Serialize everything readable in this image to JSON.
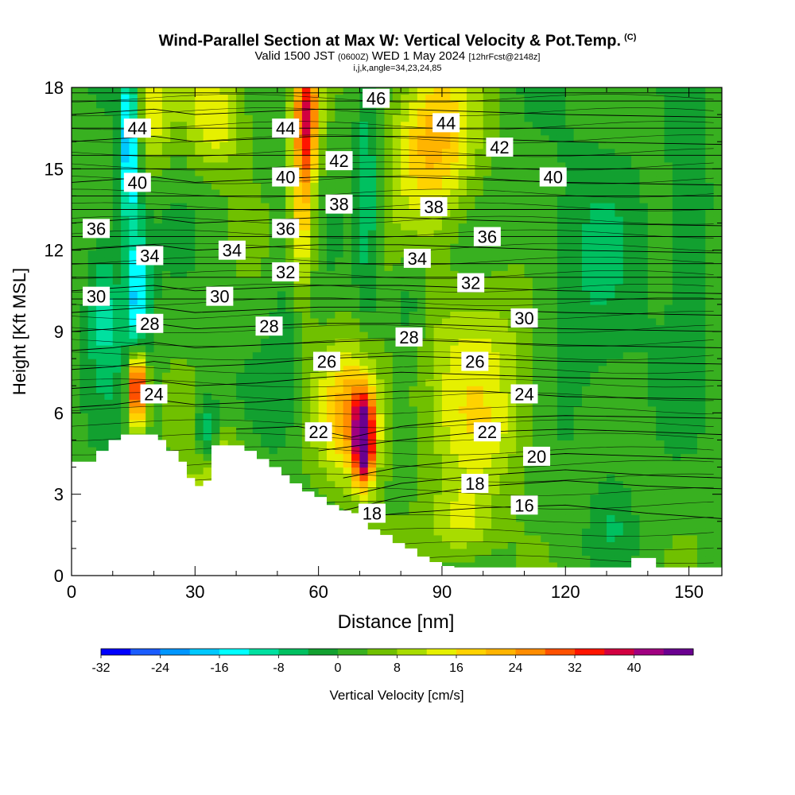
{
  "title": {
    "main": "Wind-Parallel Section at Max W: Vertical Velocity & Pot.Temp.",
    "copyright": "(C)",
    "valid_prefix": "Valid 1500 JST",
    "valid_utc": "(0600Z)",
    "valid_date": "WED 1 May 2024",
    "forecast": "[12hrFcst@2148z]",
    "indices": "i,j,k,angle=34,23,24,85"
  },
  "chart_data": {
    "type": "heatmap",
    "xlabel": "Distance [nm]",
    "ylabel": "Height [Kft MSL]",
    "xlim": [
      0,
      158
    ],
    "ylim": [
      0,
      18
    ],
    "x_ticks": [
      0,
      30,
      60,
      90,
      120,
      150
    ],
    "y_ticks": [
      0,
      3,
      6,
      9,
      12,
      15,
      18
    ],
    "grid": false,
    "colorbar": {
      "label": "Vertical Velocity [cm/s]",
      "tick_labels": [
        -32,
        -24,
        -16,
        -8,
        0,
        8,
        16,
        24,
        32,
        40
      ],
      "levels": [
        -32,
        -28,
        -24,
        -20,
        -16,
        -12,
        -8,
        -4,
        0,
        4,
        8,
        12,
        16,
        20,
        24,
        28,
        32,
        36,
        40,
        44
      ],
      "colors": [
        "#0000ff",
        "#1a5cff",
        "#0096ff",
        "#00c8ff",
        "#00ffff",
        "#00e0a0",
        "#00c060",
        "#12a030",
        "#38b020",
        "#70c000",
        "#a8dc00",
        "#e6f000",
        "#ffd200",
        "#ffb400",
        "#ff8c00",
        "#ff5000",
        "#ff1400",
        "#d20040",
        "#a00080",
        "#6a0090"
      ]
    },
    "terrain_profile": {
      "x": [
        0,
        3,
        6,
        9,
        12,
        15,
        17,
        21,
        23,
        26,
        28,
        30,
        32,
        34,
        37,
        40,
        42,
        45,
        48,
        51,
        53,
        56,
        59,
        62,
        65,
        68,
        70,
        72,
        75,
        78,
        81,
        84,
        87,
        90,
        93,
        100,
        110,
        120,
        125,
        130,
        133,
        136,
        139,
        142,
        145,
        150,
        158
      ],
      "heights": [
        4.2,
        4.2,
        4.6,
        5.0,
        5.2,
        5.2,
        5.2,
        5.0,
        4.6,
        4.2,
        3.6,
        3.3,
        3.5,
        4.8,
        4.8,
        4.8,
        4.6,
        4.3,
        4.0,
        3.7,
        3.4,
        3.1,
        2.9,
        2.6,
        2.4,
        2.3,
        2.0,
        1.7,
        1.5,
        1.2,
        1.0,
        0.7,
        0.5,
        0.35,
        0.3,
        0.3,
        0.3,
        0.3,
        0.3,
        0.3,
        0.3,
        0.65,
        0.65,
        0.3,
        0.3,
        0.3,
        0.3
      ]
    },
    "series": [
      {
        "name": "16",
        "label_x": 110,
        "label_y": 2.6,
        "x": [
          60,
          80,
          100,
          120,
          140,
          158
        ],
        "y": [
          2.0,
          2.3,
          2.5,
          2.6,
          2.3,
          2.1
        ]
      },
      {
        "name": "18",
        "label_x": 73,
        "label_y": 2.3,
        "x": [
          66,
          80,
          100,
          120,
          140,
          158
        ],
        "y": [
          2.4,
          2.9,
          3.3,
          3.5,
          3.3,
          3.2
        ]
      },
      {
        "name": "18",
        "label_x": 98,
        "label_y": 3.4,
        "x": [
          66,
          80,
          100,
          120,
          140,
          158
        ],
        "y": [
          2.9,
          3.4,
          3.7,
          3.9,
          3.7,
          3.6
        ]
      },
      {
        "name": "20",
        "label_x": 113,
        "label_y": 4.4,
        "x": [
          66,
          80,
          100,
          120,
          140,
          158
        ],
        "y": [
          3.6,
          4.0,
          4.3,
          4.5,
          4.4,
          4.3
        ]
      },
      {
        "name": "22",
        "label_x": 101,
        "label_y": 5.3,
        "x": [
          60,
          80,
          100,
          120,
          140,
          158
        ],
        "y": [
          4.6,
          5.0,
          5.3,
          5.4,
          5.3,
          5.2
        ]
      },
      {
        "name": "22",
        "label_x": 60,
        "label_y": 5.3,
        "x": [
          40,
          55,
          68,
          80,
          100,
          120,
          158
        ],
        "y": [
          5.4,
          5.5,
          5.1,
          5.5,
          5.8,
          5.9,
          5.8
        ]
      },
      {
        "name": "24",
        "label_x": 20,
        "label_y": 6.7,
        "x": [
          0,
          10,
          20,
          30,
          45,
          60,
          80,
          100,
          120,
          158
        ],
        "y": [
          6.2,
          6.3,
          6.5,
          6.3,
          6.4,
          6.6,
          6.8,
          6.8,
          6.6,
          6.5
        ]
      },
      {
        "name": "24",
        "label_x": 110,
        "label_y": 6.7,
        "x": [
          0,
          10,
          20,
          30,
          45,
          60,
          80,
          100,
          120,
          158
        ],
        "y": [
          6.9,
          7.0,
          7.2,
          7.0,
          7.1,
          7.3,
          7.5,
          7.4,
          7.3,
          7.2
        ]
      },
      {
        "name": "26",
        "label_x": 62,
        "label_y": 7.9,
        "x": [
          0,
          10,
          20,
          30,
          45,
          60,
          80,
          100,
          120,
          158
        ],
        "y": [
          7.6,
          7.7,
          7.9,
          7.7,
          7.8,
          8.0,
          8.1,
          8.0,
          7.9,
          7.8
        ]
      },
      {
        "name": "26",
        "label_x": 98,
        "label_y": 7.9,
        "x": [
          0,
          10,
          20,
          30,
          45,
          60,
          80,
          100,
          120,
          158
        ],
        "y": [
          8.3,
          8.4,
          8.6,
          8.4,
          8.5,
          8.6,
          8.7,
          8.6,
          8.5,
          8.4
        ]
      },
      {
        "name": "28",
        "label_x": 19,
        "label_y": 9.3,
        "x": [
          0,
          10,
          20,
          30,
          45,
          60,
          80,
          100,
          120,
          158
        ],
        "y": [
          9.0,
          9.1,
          9.3,
          9.1,
          9.2,
          9.3,
          9.3,
          9.2,
          9.1,
          9.0
        ]
      },
      {
        "name": "28",
        "label_x": 48,
        "label_y": 9.2,
        "x": [
          0,
          10,
          20,
          30,
          45,
          60,
          80,
          100,
          120,
          158
        ],
        "y": [
          9.7,
          9.8,
          9.9,
          9.7,
          9.8,
          9.9,
          9.9,
          9.8,
          9.7,
          9.6
        ]
      },
      {
        "name": "28",
        "label_x": 82,
        "label_y": 8.8,
        "x": [
          0,
          158
        ],
        "y": [
          10.2,
          10.2
        ]
      },
      {
        "name": "30",
        "label_x": 6,
        "label_y": 10.3,
        "x": [
          0,
          10,
          20,
          30,
          45,
          60,
          80,
          100,
          120,
          158
        ],
        "y": [
          10.5,
          10.6,
          10.7,
          10.5,
          10.6,
          10.7,
          10.7,
          10.6,
          10.5,
          10.4
        ]
      },
      {
        "name": "30",
        "label_x": 36,
        "label_y": 10.3,
        "x": [
          0,
          158
        ],
        "y": [
          11.0,
          11.0
        ]
      },
      {
        "name": "30",
        "label_x": 110,
        "label_y": 9.5,
        "x": [
          0,
          158
        ],
        "y": [
          11.5,
          11.5
        ]
      },
      {
        "name": "32",
        "label_x": 52,
        "label_y": 11.2,
        "x": [
          0,
          10,
          20,
          30,
          45,
          60,
          80,
          100,
          120,
          158
        ],
        "y": [
          12.0,
          12.1,
          12.2,
          12.0,
          12.1,
          12.2,
          12.2,
          12.1,
          12.0,
          11.9
        ]
      },
      {
        "name": "32",
        "label_x": 97,
        "label_y": 10.8,
        "x": [
          0,
          158
        ],
        "y": [
          12.5,
          12.5
        ]
      },
      {
        "name": "34",
        "label_x": 19,
        "label_y": 11.8,
        "x": [
          0,
          10,
          20,
          30,
          45,
          60,
          80,
          100,
          120,
          158
        ],
        "y": [
          13.0,
          13.1,
          13.2,
          13.0,
          13.1,
          13.2,
          13.2,
          13.1,
          13.0,
          12.9
        ]
      },
      {
        "name": "34",
        "label_x": 39,
        "label_y": 12.0,
        "x": [
          0,
          158
        ],
        "y": [
          13.5,
          13.5
        ]
      },
      {
        "name": "34",
        "label_x": 84,
        "label_y": 11.7,
        "x": [
          0,
          158
        ],
        "y": [
          14.0,
          14.0
        ]
      },
      {
        "name": "36",
        "label_x": 6,
        "label_y": 12.8,
        "x": [
          0,
          10,
          20,
          30,
          45,
          60,
          80,
          100,
          120,
          158
        ],
        "y": [
          14.5,
          14.6,
          14.7,
          14.5,
          14.6,
          14.7,
          14.7,
          14.6,
          14.5,
          14.4
        ]
      },
      {
        "name": "36",
        "label_x": 52,
        "label_y": 12.8,
        "x": [
          0,
          158
        ],
        "y": [
          15.0,
          15.0
        ]
      },
      {
        "name": "36",
        "label_x": 101,
        "label_y": 12.5,
        "x": [
          0,
          158
        ],
        "y": [
          15.5,
          15.5
        ]
      },
      {
        "name": "38",
        "label_x": 65,
        "label_y": 13.7,
        "x": [
          0,
          10,
          20,
          30,
          45,
          60,
          80,
          100,
          120,
          158
        ],
        "y": [
          16.0,
          16.1,
          16.2,
          16.0,
          16.1,
          16.2,
          16.2,
          16.1,
          16.0,
          15.9
        ]
      },
      {
        "name": "38",
        "label_x": 88,
        "label_y": 13.6,
        "x": [
          0,
          158
        ],
        "y": [
          16.5,
          16.5
        ]
      },
      {
        "name": "40",
        "label_x": 16,
        "label_y": 14.5,
        "x": [
          0,
          10,
          20,
          30,
          45,
          60,
          80,
          100,
          120,
          158
        ],
        "y": [
          17.0,
          17.1,
          17.2,
          17.0,
          17.1,
          17.2,
          17.2,
          17.1,
          17.0,
          16.9
        ]
      },
      {
        "name": "40",
        "label_x": 52,
        "label_y": 14.7,
        "x": [
          0,
          158
        ],
        "y": [
          17.5,
          17.5
        ]
      },
      {
        "name": "40",
        "label_x": 117,
        "label_y": 14.7,
        "x": [
          0,
          158
        ],
        "y": [
          17.8,
          17.8
        ]
      },
      {
        "name": "42",
        "label_x": 65,
        "label_y": 15.3,
        "x": [
          0,
          158
        ],
        "y": [
          18.0,
          18.0
        ]
      },
      {
        "name": "42",
        "label_x": 104,
        "label_y": 15.8
      },
      {
        "name": "44",
        "label_x": 16,
        "label_y": 16.5
      },
      {
        "name": "44",
        "label_x": 52,
        "label_y": 16.5
      },
      {
        "name": "44",
        "label_x": 91,
        "label_y": 16.7
      },
      {
        "name": "46",
        "label_x": 74,
        "label_y": 17.6
      }
    ]
  }
}
